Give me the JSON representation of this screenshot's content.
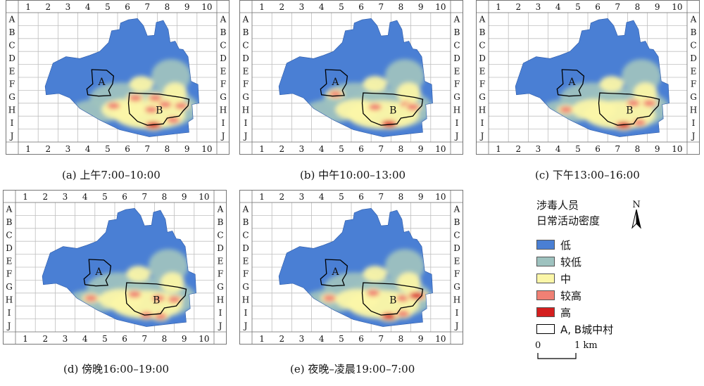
{
  "colors": {
    "low": "#4a7fd4",
    "lower": "#9ec2bf",
    "mid": "#fbf6a8",
    "higher": "#f08074",
    "high": "#d41e1e",
    "outline": "#000000",
    "grid": "#bfbfbf"
  },
  "grid": {
    "columns": [
      "1",
      "2",
      "3",
      "4",
      "5",
      "6",
      "7",
      "8",
      "9",
      "10"
    ],
    "rows": [
      "A",
      "B",
      "C",
      "D",
      "E",
      "F",
      "G",
      "H",
      "I",
      "J"
    ]
  },
  "panels": [
    {
      "caption": "(a) 上午7:00–10:00",
      "label_a": "A",
      "label_b": "B"
    },
    {
      "caption": "(b) 中午10:00–13:00",
      "label_a": "A",
      "label_b": "B"
    },
    {
      "caption": "(c) 下午13:00–16:00",
      "label_a": "A",
      "label_b": "B"
    },
    {
      "caption": "(d) 傍晚16:00–19:00",
      "label_a": "A",
      "label_b": "B"
    },
    {
      "caption": "(e) 夜晚–凌晨19:00–7:00",
      "label_a": "A",
      "label_b": "B"
    }
  ],
  "legend": {
    "title_line1": "涉毒人员",
    "title_line2": "日常活动密度",
    "items": [
      {
        "label": "低",
        "color_key": "low"
      },
      {
        "label": "较低",
        "color_key": "lower"
      },
      {
        "label": "中",
        "color_key": "mid"
      },
      {
        "label": "较高",
        "color_key": "higher"
      },
      {
        "label": "高",
        "color_key": "high"
      },
      {
        "label": "A, B城中村",
        "color_key": "white"
      }
    ],
    "north_label": "N",
    "scale_start": "0",
    "scale_end": "1 km"
  },
  "hotspots": [
    [
      {
        "col": 5.9,
        "row": 6.6,
        "level": "higher"
      },
      {
        "col": 6.9,
        "row": 6.6,
        "level": "higher"
      },
      {
        "col": 7.4,
        "row": 7.1,
        "level": "higher"
      },
      {
        "col": 8.2,
        "row": 7.2,
        "level": "higher"
      },
      {
        "col": 4.8,
        "row": 7.2,
        "level": "higher"
      },
      {
        "col": 6.7,
        "row": 7.5,
        "level": "higher"
      },
      {
        "col": 6.8,
        "row": 8.7,
        "level": "high"
      },
      {
        "col": 7.8,
        "row": 8.3,
        "level": "higher"
      }
    ],
    [
      {
        "col": 6.2,
        "row": 7.3,
        "level": "higher"
      },
      {
        "col": 7.8,
        "row": 7.1,
        "level": "higher"
      },
      {
        "col": 8.1,
        "row": 7.3,
        "level": "higher"
      },
      {
        "col": 6.9,
        "row": 8.6,
        "level": "high"
      },
      {
        "col": 4.2,
        "row": 6.3,
        "level": "higher"
      }
    ],
    [
      {
        "col": 7.3,
        "row": 7.0,
        "level": "higher"
      },
      {
        "col": 8.1,
        "row": 7.0,
        "level": "higher"
      },
      {
        "col": 3.9,
        "row": 7.5,
        "level": "higher"
      },
      {
        "col": 6.8,
        "row": 8.7,
        "level": "high"
      },
      {
        "col": 7.6,
        "row": 8.5,
        "level": "higher"
      }
    ],
    [
      {
        "col": 7.2,
        "row": 7.4,
        "level": "higher"
      },
      {
        "col": 8.0,
        "row": 7.5,
        "level": "higher"
      },
      {
        "col": 6.0,
        "row": 7.1,
        "level": "higher"
      },
      {
        "col": 3.8,
        "row": 7.4,
        "level": "higher"
      },
      {
        "col": 7.3,
        "row": 8.8,
        "level": "higher"
      },
      {
        "col": 6.6,
        "row": 8.7,
        "level": "higher"
      }
    ],
    [
      {
        "col": 7.6,
        "row": 7.4,
        "level": "higher"
      },
      {
        "col": 8.3,
        "row": 7.2,
        "level": "high"
      },
      {
        "col": 6.1,
        "row": 7.0,
        "level": "higher"
      },
      {
        "col": 3.9,
        "row": 7.4,
        "level": "higher"
      },
      {
        "col": 6.9,
        "row": 8.8,
        "level": "high"
      },
      {
        "col": 7.6,
        "row": 8.6,
        "level": "higher"
      }
    ]
  ]
}
